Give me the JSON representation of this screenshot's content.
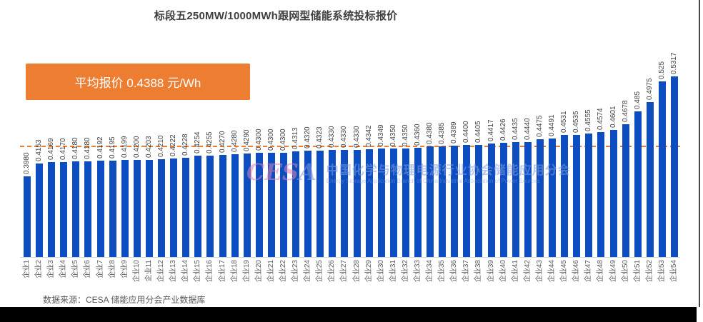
{
  "title": "标段五250MW/1000MWh跟网型储能系统投标报价",
  "average_box": {
    "label": "平均报价 0.4388 元/Wh"
  },
  "footer": {
    "source": "数据来源：CESA 储能应用分会产业数据库"
  },
  "watermark": {
    "logo_part1": "CES",
    "logo_part2": "A",
    "line_cn": "中国化学与物理电源行业协会储能应用分会",
    "line_en": "Energy Storage Application Branch of China Industrial Association of Power Sources"
  },
  "colors": {
    "bar": "#0c4ec2",
    "accent_orange": "#ed7d31",
    "value_text": "#3f3f3f",
    "axis_text": "#595959",
    "bottom_bar": "#000000"
  },
  "chart_data": {
    "type": "bar",
    "title": "标段五250MW/1000MWh跟网型储能系统投标报价",
    "unit": "元/Wh",
    "average": 0.4388,
    "average_line": "dashed-orange",
    "grid": false,
    "legend": "none",
    "ylim": [
      0.29,
      0.55
    ],
    "categories": [
      "企业1",
      "企业2",
      "企业3",
      "企业4",
      "企业5",
      "企业6",
      "企业7",
      "企业8",
      "企业9",
      "企业10",
      "企业11",
      "企业12",
      "企业13",
      "企业14",
      "企业15",
      "企业16",
      "企业17",
      "企业18",
      "企业19",
      "企业20",
      "企业21",
      "企业22",
      "企业23",
      "企业24",
      "企业25",
      "企业26",
      "企业27",
      "企业28",
      "企业29",
      "企业30",
      "企业31",
      "企业32",
      "企业33",
      "企业34",
      "企业35",
      "企业36",
      "企业37",
      "企业38",
      "企业39",
      "企业40",
      "企业41",
      "企业42",
      "企业43",
      "企业44",
      "企业45",
      "企业46",
      "企业47",
      "企业48",
      "企业49",
      "企业50",
      "企业51",
      "企业52",
      "企业53",
      "企业54"
    ],
    "values": [
      0.398,
      0.4153,
      0.4169,
      0.417,
      0.418,
      0.418,
      0.4192,
      0.4195,
      0.4199,
      0.42,
      0.4203,
      0.421,
      0.4222,
      0.4228,
      0.4254,
      0.4255,
      0.427,
      0.428,
      0.429,
      0.43,
      0.43,
      0.43,
      0.4313,
      0.432,
      0.4323,
      0.433,
      0.433,
      0.433,
      0.4342,
      0.4349,
      0.435,
      0.435,
      0.436,
      0.438,
      0.4385,
      0.4389,
      0.44,
      0.4405,
      0.4417,
      0.4426,
      0.4435,
      0.444,
      0.4475,
      0.4491,
      0.4531,
      0.4535,
      0.4555,
      0.4574,
      0.4601,
      0.4678,
      0.485,
      0.4975,
      0.525,
      0.5317
    ],
    "value_labels": [
      "0.3980",
      "0.4153",
      "0.4169",
      "0.4170",
      "0.4180",
      "0.4180",
      "0.4192",
      "0.4195",
      "0.4199",
      "0.4200",
      "0.4203",
      "0.4210",
      "0.4222",
      "0.4228",
      "0.4254",
      "0.4255",
      "0.4270",
      "0.4280",
      "0.4290",
      "0.4300",
      "0.4300",
      "0.4300",
      "0.4313",
      "0.4320",
      "0.4323",
      "0.4330",
      "0.4330",
      "0.4330",
      "0.4342",
      "0.4349",
      "0.4350",
      "0.4350",
      "0.4360",
      "0.4380",
      "0.4385",
      "0.4389",
      "0.4400",
      "0.4405",
      "0.4417",
      "0.4426",
      "0.4435",
      "0.4440",
      "0.4475",
      "0.4491",
      "0.4531",
      "0.4535",
      "0.4555",
      "0.4574",
      "0.4601",
      "0.4678",
      "0.485",
      "0.4975",
      "0.525",
      "0.5317"
    ]
  }
}
